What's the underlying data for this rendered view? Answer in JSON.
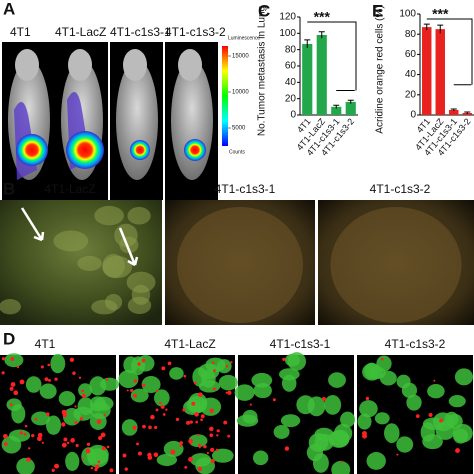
{
  "panels": {
    "a": {
      "label": "A",
      "columns": [
        "4T1",
        "4T1-LacZ",
        "4T1-c1s3-1",
        "4T1-c1s3-2"
      ],
      "colorbar": {
        "title": "Luminescence",
        "ticks": [
          15000,
          10000,
          5000
        ],
        "unit": "Counts"
      }
    },
    "b": {
      "label": "B",
      "columns": [
        "4T1-LacZ",
        "4T1-c1s3-1",
        "4T1-c1s3-2"
      ]
    },
    "d": {
      "label": "D",
      "columns": [
        "4T1",
        "4T1-LacZ",
        "4T1-c1s3-1",
        "4T1-c1s3-2"
      ]
    }
  },
  "chart_data": [
    {
      "type": "bar",
      "label": "C",
      "y_label": "No.Tumor metastasis in Lung",
      "categories": [
        "4T1",
        "4T1-LacZ",
        "4T1-c1s3-1",
        "4T1-c1s3-2"
      ],
      "values": [
        87,
        98,
        10,
        16
      ],
      "errors": [
        5,
        4,
        2,
        2
      ],
      "color": "#22a84a",
      "ylim": [
        0,
        120
      ],
      "yticks": [
        0,
        20,
        40,
        60,
        80,
        100,
        120
      ],
      "annotation": "***"
    },
    {
      "type": "bar",
      "label": "E",
      "y_label": "Acridine orange red cells (%)",
      "categories": [
        "4T1",
        "4T1-LacZ",
        "4T1-c1s3-1",
        "4T1-c1s3-2"
      ],
      "values": [
        87,
        85,
        5,
        2
      ],
      "errors": [
        3,
        4,
        1,
        1
      ],
      "color": "#e8221e",
      "ylim": [
        0,
        100
      ],
      "yticks": [
        0,
        20,
        40,
        60,
        80,
        100
      ],
      "annotation": "***"
    }
  ]
}
